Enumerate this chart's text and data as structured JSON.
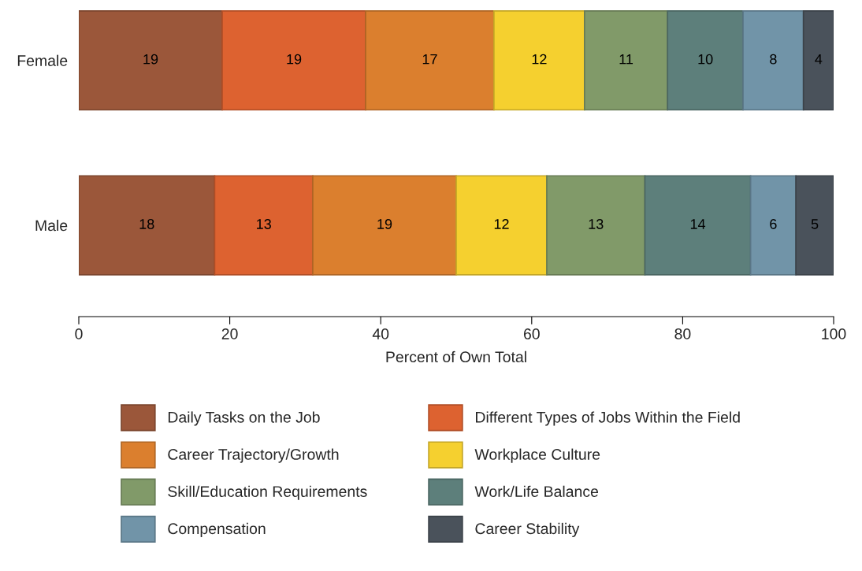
{
  "chart_data": {
    "type": "bar",
    "orientation": "horizontal",
    "stacked": true,
    "xlabel": "Percent of Own Total",
    "categories": [
      "Female",
      "Male"
    ],
    "series": [
      {
        "name": "Daily Tasks on the Job",
        "color": "#9b573a",
        "values": [
          19,
          18
        ]
      },
      {
        "name": "Different Types of Jobs Within the Field",
        "color": "#dd6230",
        "values": [
          19,
          13
        ]
      },
      {
        "name": "Career Trajectory/Growth",
        "color": "#db7f2e",
        "values": [
          17,
          19
        ]
      },
      {
        "name": "Workplace Culture",
        "color": "#f5d02f",
        "values": [
          12,
          12
        ]
      },
      {
        "name": "Skill/Education Requirements",
        "color": "#819a69",
        "values": [
          11,
          13
        ]
      },
      {
        "name": "Work/Life Balance",
        "color": "#5d7f7b",
        "values": [
          10,
          14
        ]
      },
      {
        "name": "Compensation",
        "color": "#7194a8",
        "values": [
          8,
          6
        ]
      },
      {
        "name": "Career Stability",
        "color": "#4a525b",
        "values": [
          4,
          5
        ]
      }
    ],
    "xlim": [
      0,
      100
    ],
    "xticks": [
      0,
      20,
      40,
      60,
      80,
      100
    ],
    "data_labels": true,
    "grid": false,
    "legend": "bottom"
  }
}
